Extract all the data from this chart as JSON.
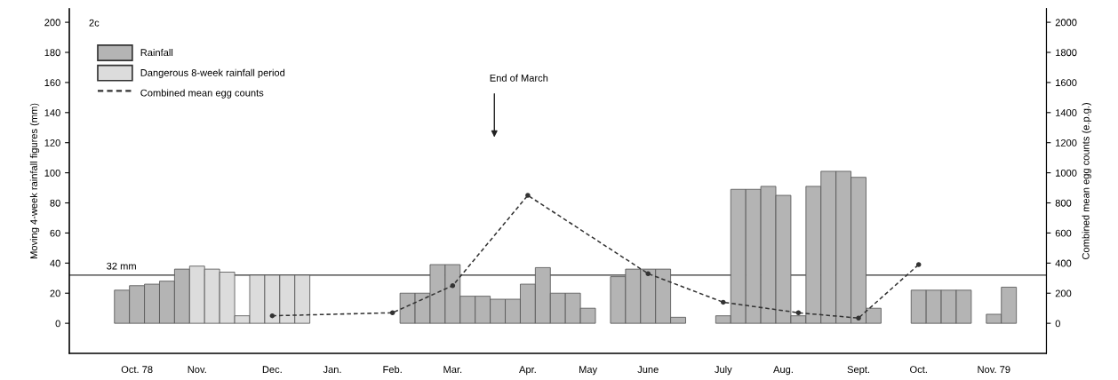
{
  "chart_data": {
    "type": "bar",
    "ylabel": "Moving 4-week rainfall figures (mm)",
    "y2label": "Combined mean egg counts (e.p.g.)",
    "annotations": [
      "2c",
      "End of March"
    ],
    "categories": [
      null,
      null,
      null,
      null,
      "Oct. 78",
      null,
      null,
      null,
      "Nov.",
      null,
      null,
      null,
      null,
      "Dec.",
      null,
      null,
      null,
      "Jan.",
      null,
      null,
      null,
      "Feb.",
      null,
      null,
      null,
      "Mar.",
      null,
      null,
      null,
      null,
      "Apr.",
      null,
      null,
      null,
      "May",
      null,
      null,
      null,
      "June",
      null,
      null,
      null,
      null,
      "July",
      null,
      null,
      null,
      "Aug.",
      null,
      null,
      null,
      null,
      "Sept.",
      null,
      null,
      null,
      "Oct.",
      null,
      null,
      null,
      null,
      "Nov. 79",
      null,
      null,
      null
    ],
    "ylim": [
      -20,
      209
    ],
    "yticks": [
      0,
      20,
      40,
      60,
      80,
      100,
      120,
      140,
      160,
      180,
      200
    ],
    "y2lim": [
      -200,
      2090
    ],
    "y2ticks": [
      0,
      200,
      400,
      600,
      800,
      1000,
      1200,
      1400,
      1600,
      1800,
      2000
    ],
    "ref_lines": [
      {
        "axis": "y",
        "value": 32,
        "label": "32 mm",
        "color": "#333333"
      }
    ],
    "series": [
      {
        "name": "Rainfall",
        "color": "#b4b4b4",
        "values": [
          null,
          null,
          null,
          22,
          25,
          26,
          28,
          36,
          null,
          null,
          null,
          null,
          null,
          null,
          null,
          null,
          null,
          null,
          null,
          null,
          null,
          null,
          20,
          20,
          39,
          39,
          18,
          18,
          16,
          16,
          26,
          37,
          20,
          20,
          10,
          null,
          31,
          36,
          36,
          36,
          4,
          null,
          null,
          5,
          89,
          89,
          91,
          85,
          5,
          91,
          101,
          101,
          97,
          10,
          null,
          null,
          22,
          22,
          22,
          22,
          null,
          6,
          24,
          null,
          null
        ]
      },
      {
        "name": "Dangerous 8-week rainfall period",
        "color": "#dcdcdc",
        "values": [
          null,
          null,
          null,
          null,
          null,
          null,
          null,
          null,
          38,
          36,
          34,
          5,
          32,
          32,
          32,
          32,
          null,
          null,
          null,
          null,
          null,
          null,
          null,
          null,
          null,
          null,
          null,
          null,
          null,
          null,
          null,
          null,
          null,
          null,
          null,
          null,
          null,
          null,
          null,
          null,
          null,
          null,
          null,
          null,
          null,
          null,
          null,
          null,
          null,
          null,
          null,
          null,
          null,
          null,
          null,
          null,
          null,
          null,
          null,
          null,
          null,
          null,
          null,
          null,
          null
        ]
      },
      {
        "name": "Combined mean egg counts",
        "type": "line",
        "axis": "y2",
        "color": "#333333",
        "marker": "circle",
        "line_style": "dashed",
        "values": [
          null,
          null,
          null,
          null,
          null,
          null,
          null,
          null,
          null,
          null,
          null,
          null,
          null,
          50,
          null,
          null,
          null,
          null,
          null,
          null,
          null,
          70,
          null,
          null,
          null,
          250,
          null,
          null,
          null,
          null,
          850,
          null,
          null,
          null,
          null,
          null,
          null,
          null,
          330,
          null,
          null,
          null,
          null,
          140,
          null,
          null,
          null,
          null,
          70,
          null,
          null,
          null,
          35,
          null,
          null,
          null,
          390,
          null,
          null,
          null,
          null,
          null,
          null,
          null,
          null
        ]
      }
    ],
    "legend": "top left",
    "grid": false
  }
}
